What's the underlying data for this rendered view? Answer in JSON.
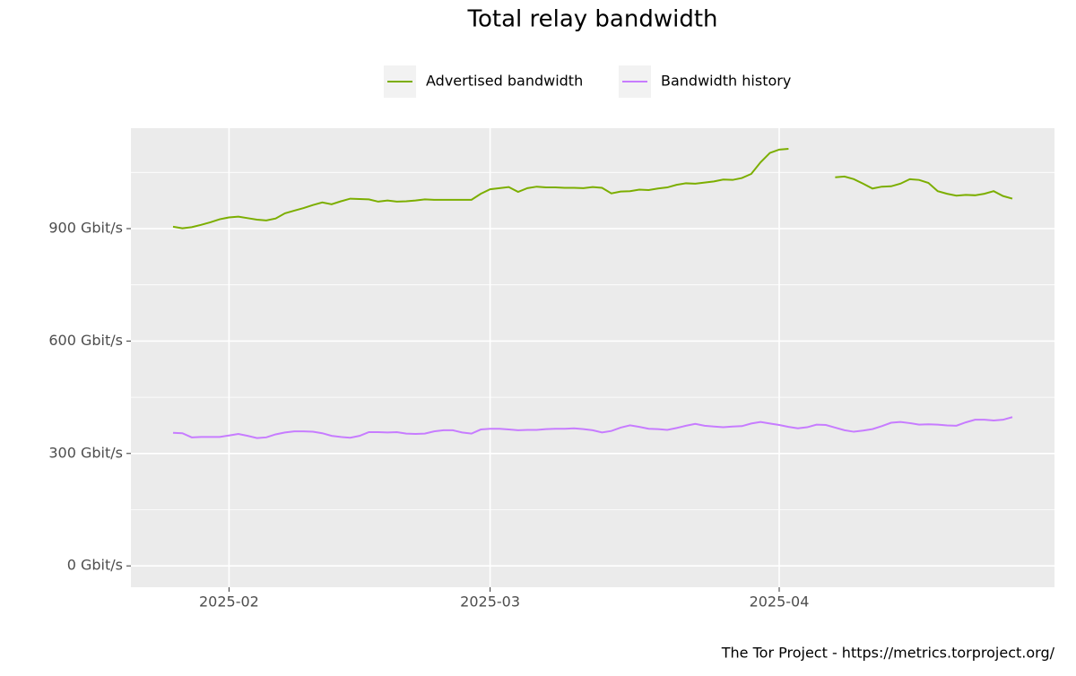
{
  "chart_data": {
    "type": "line",
    "title": "Total relay bandwidth",
    "caption": "The Tor Project - https://metrics.torproject.org/",
    "categories": [
      null,
      null,
      null,
      null,
      null,
      null,
      "2025-02",
      null,
      null,
      null,
      null,
      null,
      null,
      null,
      null,
      null,
      null,
      null,
      null,
      null,
      null,
      null,
      null,
      null,
      null,
      null,
      null,
      null,
      null,
      null,
      null,
      null,
      null,
      null,
      "2025-03",
      null,
      null,
      null,
      null,
      null,
      null,
      null,
      null,
      null,
      null,
      null,
      null,
      null,
      null,
      null,
      null,
      null,
      null,
      null,
      null,
      null,
      null,
      null,
      null,
      null,
      null,
      null,
      null,
      null,
      null,
      "2025-04",
      null,
      null,
      null,
      null,
      null,
      null,
      null,
      null,
      null,
      null,
      null,
      null,
      null,
      null,
      null,
      null,
      null,
      null,
      null,
      null,
      null,
      null,
      null,
      null,
      null
    ],
    "series": [
      {
        "name": "Advertised bandwidth",
        "color": "#7cae00",
        "values": [
          905,
          901,
          904,
          910,
          917,
          925,
          930,
          932,
          928,
          924,
          922,
          927,
          941,
          948,
          955,
          963,
          970,
          965,
          973,
          980,
          979,
          978,
          972,
          975,
          972,
          973,
          975,
          978,
          977,
          977,
          977,
          977,
          977,
          993,
          1005,
          1008,
          1011,
          998,
          1008,
          1012,
          1010,
          1010,
          1009,
          1009,
          1008,
          1011,
          1009,
          994,
          999,
          1000,
          1004,
          1003,
          1007,
          1010,
          1017,
          1021,
          1020,
          1023,
          1026,
          1031,
          1030,
          1035,
          1046,
          1077,
          1102,
          1111,
          1113,
          null,
          null,
          null,
          null,
          1037,
          1039,
          1032,
          1020,
          1007,
          1012,
          1013,
          1020,
          1032,
          1030,
          1022,
          1000,
          993,
          988,
          990,
          989,
          993,
          1000,
          987,
          980
        ]
      },
      {
        "name": "Bandwidth history",
        "color": "#c77cff",
        "values": [
          355,
          354,
          343,
          344,
          344,
          344,
          348,
          352,
          347,
          341,
          343,
          351,
          356,
          359,
          359,
          358,
          354,
          347,
          344,
          342,
          347,
          357,
          357,
          356,
          357,
          353,
          352,
          353,
          359,
          362,
          362,
          356,
          353,
          364,
          366,
          366,
          364,
          362,
          363,
          363,
          365,
          366,
          366,
          367,
          365,
          362,
          356,
          360,
          369,
          375,
          371,
          366,
          365,
          363,
          368,
          374,
          379,
          374,
          372,
          370,
          372,
          373,
          380,
          384,
          380,
          376,
          371,
          367,
          370,
          377,
          376,
          369,
          362,
          358,
          361,
          365,
          373,
          382,
          384,
          381,
          377,
          378,
          377,
          375,
          374,
          383,
          390,
          390,
          388,
          390,
          397
        ]
      }
    ],
    "ylim": [
      -57,
      1168
    ],
    "yticks": [
      {
        "value": 0,
        "label": "0 Gbit/s"
      },
      {
        "value": 300,
        "label": "300 Gbit/s"
      },
      {
        "value": 600,
        "label": "600 Gbit/s"
      },
      {
        "value": 900,
        "label": "900 Gbit/s"
      }
    ],
    "grid": true,
    "legend": "top"
  }
}
